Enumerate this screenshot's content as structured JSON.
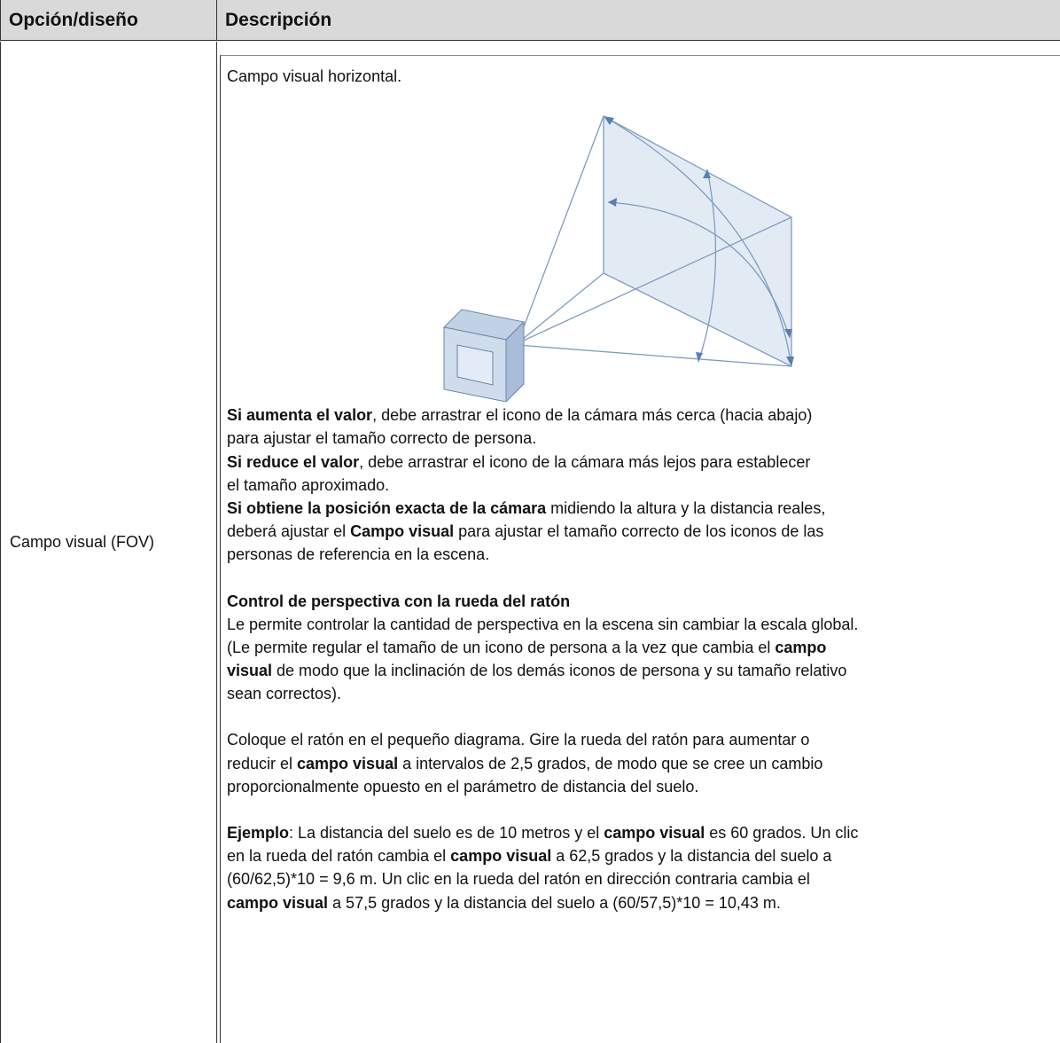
{
  "table": {
    "header": [
      "Opción/diseño",
      "Descripción"
    ],
    "rows": [
      {
        "option": "Campo visual (FOV)",
        "description": [
          {
            "lines": [
              [
                {
                  "text": "Campo visual horizontal."
                }
              ]
            ]
          },
          {
            "lines": [
              [
                {
                  "text": "Si aumenta el valor",
                  "bold": true
                },
                {
                  "text": ", debe arrastrar el icono de la cámara más cerca (hacia abajo)"
                }
              ],
              [
                {
                  "text": "para ajustar el tamaño correcto de persona."
                }
              ],
              [
                {
                  "text": "Si reduce el valor",
                  "bold": true
                },
                {
                  "text": ", debe arrastrar el icono de la cámara más lejos para establecer"
                }
              ],
              [
                {
                  "text": "el tamaño aproximado."
                }
              ],
              [
                {
                  "text": "Si obtiene la posición exacta de la cámara",
                  "bold": true
                },
                {
                  "text": " midiendo la altura y la distancia reales,"
                }
              ],
              [
                {
                  "text": "deberá ajustar el "
                },
                {
                  "text": "Campo visual",
                  "bold": true
                },
                {
                  "text": " para ajustar el tamaño correcto de los iconos de las"
                }
              ],
              [
                {
                  "text": "personas de referencia en la escena."
                }
              ]
            ]
          },
          {
            "lines": [
              [
                {
                  "text": "Control de perspectiva con la rueda del ratón",
                  "bold": true
                }
              ],
              [
                {
                  "text": "Le permite controlar la cantidad de perspectiva en la escena sin cambiar la escala global."
                }
              ],
              [
                {
                  "text": "(Le permite regular el tamaño de un icono de persona a la vez que cambia el "
                },
                {
                  "text": "campo",
                  "bold": true
                }
              ],
              [
                {
                  "text": "visual",
                  "bold": true
                },
                {
                  "text": " de modo que la inclinación de los demás iconos de persona y su tamaño relativo"
                }
              ],
              [
                {
                  "text": "sean correctos)."
                }
              ]
            ]
          },
          {
            "lines": [
              [
                {
                  "text": "Coloque el ratón en el pequeño diagrama. Gire la rueda del ratón para aumentar o"
                }
              ],
              [
                {
                  "text": "reducir el "
                },
                {
                  "text": "campo visual",
                  "bold": true
                },
                {
                  "text": " a intervalos de 2,5 grados, de modo que se cree un cambio"
                }
              ],
              [
                {
                  "text": "proporcionalmente opuesto en el parámetro de distancia del suelo."
                }
              ]
            ]
          },
          {
            "lines": [
              [
                {
                  "text": "Ejemplo",
                  "bold": true
                },
                {
                  "text": ": La distancia del suelo es de 10 metros y el "
                },
                {
                  "text": "campo visual",
                  "bold": true
                },
                {
                  "text": " es 60 grados. Un clic"
                }
              ],
              [
                {
                  "text": "en la rueda del ratón cambia el "
                },
                {
                  "text": "campo visual",
                  "bold": true
                },
                {
                  "text": " a 62,5 grados y la distancia del suelo a"
                }
              ],
              [
                {
                  "text": "(60/62,5)*10 = 9,6 m. Un clic en la rueda del ratón en dirección contraria cambia el"
                }
              ],
              [
                {
                  "text": "campo visual",
                  "bold": true
                },
                {
                  "text": " a 57,5 grados y la distancia del suelo a (60/57,5)*10 = 10,43 m."
                }
              ]
            ]
          }
        ]
      }
    ]
  }
}
